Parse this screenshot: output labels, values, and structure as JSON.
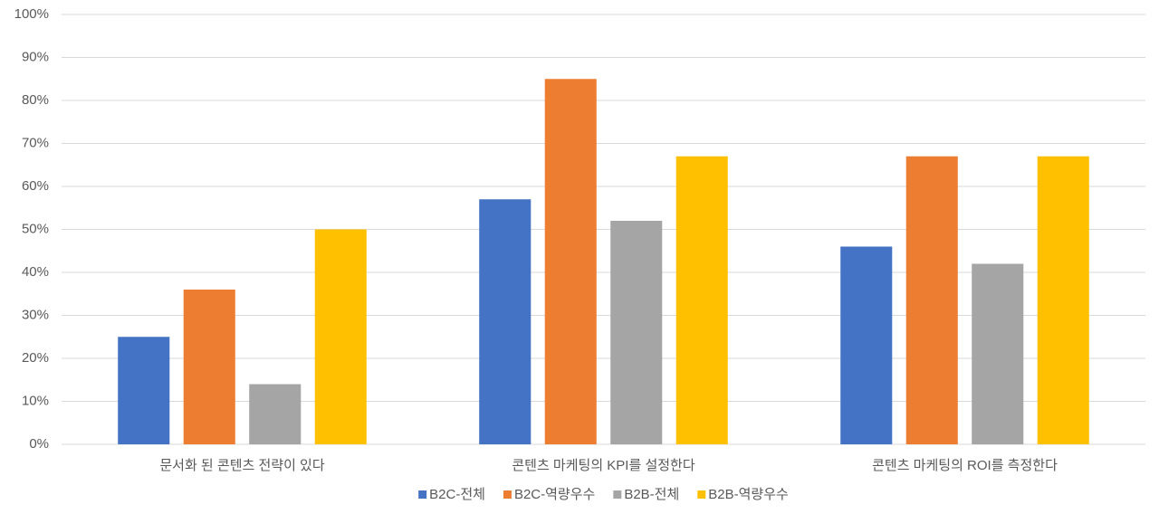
{
  "chart_data": {
    "type": "bar",
    "categories": [
      "문서화 된 콘텐츠 전략이 있다",
      "콘텐츠 마케팅의 KPI를 설정한다",
      "콘텐츠 마케팅의 ROI를 측정한다"
    ],
    "series": [
      {
        "name": "B2C-전체",
        "color": "#4472c4",
        "values": [
          25,
          57,
          46
        ]
      },
      {
        "name": "B2C-역량우수",
        "color": "#ed7d31",
        "values": [
          36,
          85,
          67
        ]
      },
      {
        "name": "B2B-전체",
        "color": "#a5a5a5",
        "values": [
          14,
          52,
          42
        ]
      },
      {
        "name": "B2B-역량우수",
        "color": "#ffc000",
        "values": [
          50,
          67,
          67
        ]
      }
    ],
    "ylim": [
      0,
      100
    ],
    "yticks": [
      {
        "value": 0,
        "label": "0%"
      },
      {
        "value": 10,
        "label": "10%"
      },
      {
        "value": 20,
        "label": "20%"
      },
      {
        "value": 30,
        "label": "30%"
      },
      {
        "value": 40,
        "label": "40%"
      },
      {
        "value": 50,
        "label": "50%"
      },
      {
        "value": 60,
        "label": "60%"
      },
      {
        "value": 70,
        "label": "70%"
      },
      {
        "value": 80,
        "label": "80%"
      },
      {
        "value": 90,
        "label": "90%"
      },
      {
        "value": 100,
        "label": "100%"
      }
    ],
    "grid": true,
    "legend": "bottom"
  }
}
